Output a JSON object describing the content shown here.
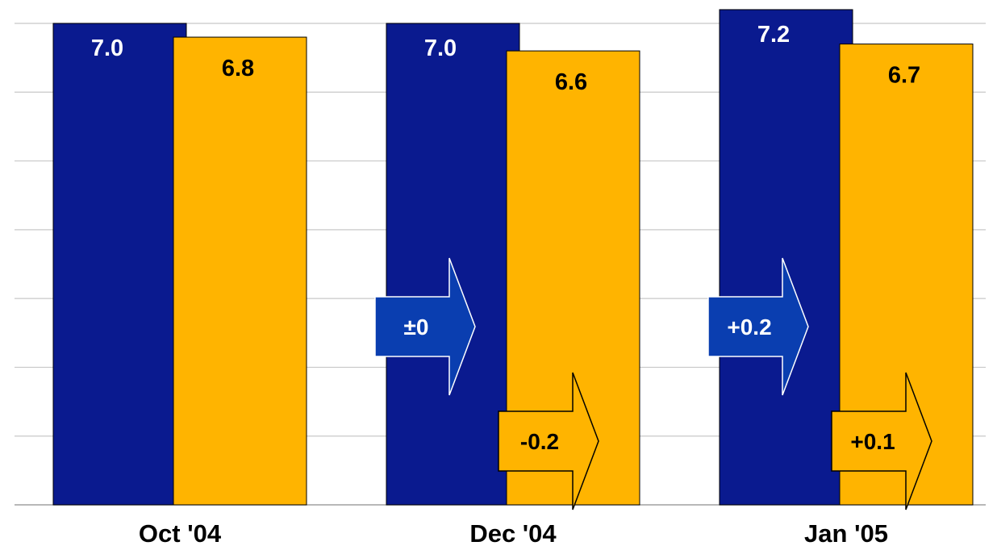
{
  "chart_data": {
    "type": "bar",
    "categories": [
      "Oct '04",
      "Dec '04",
      "Jan '05"
    ],
    "series": [
      {
        "values": [
          7.0,
          7.0,
          7.2
        ],
        "labels": [
          "7.0",
          "7.0",
          "7.2"
        ],
        "color": "#0a1a8f"
      },
      {
        "values": [
          6.8,
          6.6,
          6.7
        ],
        "labels": [
          "6.8",
          "6.6",
          "6.7"
        ],
        "color": "#ffb400"
      }
    ],
    "ylim": [
      0,
      7.4
    ],
    "grid": true,
    "annotations": [
      {
        "category": "Dec '04",
        "series": 0,
        "label": "±0",
        "color": "#0a3eb0",
        "text_color": "#ffffff"
      },
      {
        "category": "Dec '04",
        "series": 1,
        "label": "-0.2",
        "color": "#ffb400",
        "text_color": "#000000"
      },
      {
        "category": "Jan '05",
        "series": 0,
        "label": "+0.2",
        "color": "#0a3eb0",
        "text_color": "#ffffff"
      },
      {
        "category": "Jan '05",
        "series": 1,
        "label": "+0.1",
        "color": "#ffb400",
        "text_color": "#000000"
      }
    ]
  }
}
